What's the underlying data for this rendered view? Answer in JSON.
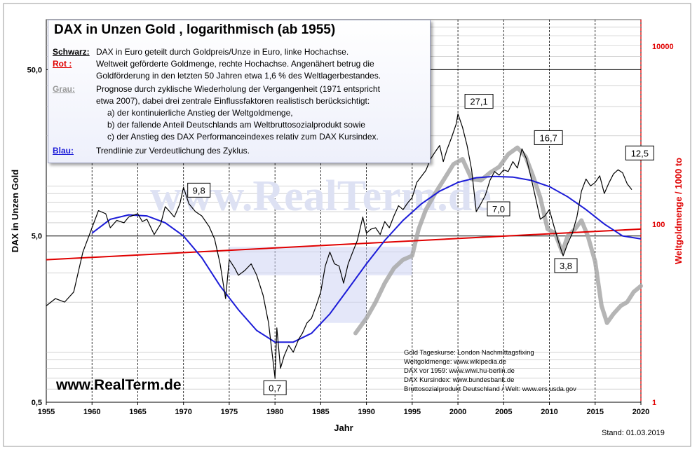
{
  "title": "DAX in Unzen Gold , logarithmisch  (ab 1955)",
  "legend": {
    "schwarz_label": "Schwarz:",
    "schwarz_text": "DAX in Euro geteilt durch Goldpreis/Unze in Euro, linke Hochachse.",
    "rot_label": "Rot :",
    "rot_text_1": "Weltweit geförderte Goldmenge, rechte Hochachse. Angenähert betrug die",
    "rot_text_2": "Goldförderung in den letzten 50 Jahren etwa  1,6 %  des Weltlagerbestandes.",
    "grau_label": "Grau:",
    "grau_text_1": "Prognose durch zyklische Wiederholung der Vergangenheit (1971 entspricht",
    "grau_text_2": "etwa 2007),   dabei drei zentrale Einflussfaktoren realistisch berücksichtigt:",
    "grau_a": "a) der kontinuierliche Anstieg der Weltgoldmenge,",
    "grau_b": "b) der fallende Anteil Deutschlands am Weltbruttosozialprodukt sowie",
    "grau_c": "c) der Anstieg des DAX Performanceindexes relativ zum DAX Kursindex.",
    "blau_label": "Blau:",
    "blau_text": "Trendlinie zur Verdeutlichung des Zyklus."
  },
  "sources": [
    "Gold Tageskurse: London Nachmittagsfixing",
    "Weltgoldmenge: www.wikipedia.de",
    "DAX vor 1959:  www.wiwi.hu-berlin.de",
    "DAX Kursindex: www.bundesbank.de",
    "Bruttosozialprodukt Deutschland / Welt: www.ers.usda.gov"
  ],
  "website": "www.RealTerm.de",
  "watermark": "www.RealTerm.de",
  "stand": "Stand:  01.03.2019",
  "colors": {
    "black": "#000000",
    "red": "#e00000",
    "grey": "#a8a8a8",
    "blue": "#1c1cd8",
    "box": "#cdd3f4"
  },
  "chart_data": {
    "type": "line",
    "xlabel": "Jahr",
    "ylabel": "DAX in Unzen Gold",
    "y2label": "Weltgoldmenge / 1000 to",
    "xlim": [
      1955,
      2020
    ],
    "ylim": [
      0.5,
      100
    ],
    "y2lim": [
      1,
      20000
    ],
    "yscale": "log",
    "y2scale": "log",
    "x_ticks": [
      "1955",
      "1960",
      "1965",
      "1970",
      "1975",
      "1980",
      "1985",
      "1990",
      "1995",
      "2000",
      "2005",
      "2010",
      "2015",
      "2020"
    ],
    "y_ticks": [
      {
        "value": 0.5,
        "label": "0,5"
      },
      {
        "value": 5,
        "label": "5,0"
      },
      {
        "value": 50,
        "label": "50,0"
      }
    ],
    "y2_ticks": [
      {
        "value": 1,
        "label": "1"
      },
      {
        "value": 100,
        "label": "100"
      },
      {
        "value": 10000,
        "label": "10000"
      }
    ],
    "annotations": [
      {
        "x": 1970,
        "y": 9.8,
        "label": "9,8"
      },
      {
        "x": 1980,
        "y": 0.7,
        "label": "0,7"
      },
      {
        "x": 2000,
        "y": 27.1,
        "label": "27,1"
      },
      {
        "x": 2002.6,
        "y": 7.0,
        "label": "7,0"
      },
      {
        "x": 2007.9,
        "y": 16.7,
        "label": "16,7"
      },
      {
        "x": 2011.8,
        "y": 3.8,
        "label": "3,8"
      },
      {
        "x": 2018.8,
        "y": 12.5,
        "label": "12,5"
      }
    ],
    "series": [
      {
        "name": "Schwarz",
        "color": "#000000",
        "x": [
          1955,
          1956,
          1957,
          1958,
          1959,
          1960,
          1960.7,
          1961.5,
          1962,
          1962.7,
          1963.5,
          1964,
          1965,
          1965.5,
          1966,
          1966.8,
          1967.5,
          1968,
          1968.5,
          1969,
          1969.6,
          1970,
          1970.6,
          1971.3,
          1972,
          1972.8,
          1973.4,
          1974,
          1974.6,
          1975,
          1975.6,
          1976,
          1976.7,
          1977.4,
          1978,
          1978.7,
          1979.3,
          1980,
          1980.2,
          1980.6,
          1981,
          1981.5,
          1982,
          1982.6,
          1983,
          1983.5,
          1984,
          1984.5,
          1985,
          1985.5,
          1986,
          1986.5,
          1987,
          1987.5,
          1988,
          1988.5,
          1989,
          1989.6,
          1990,
          1990.5,
          1991,
          1991.5,
          1992,
          1992.5,
          1993,
          1993.5,
          1994,
          1994.5,
          1995,
          1995.5,
          1996,
          1996.5,
          1997,
          1997.5,
          1998,
          1998.4,
          1998.8,
          1999.3,
          1999.8,
          2000,
          2000.5,
          2001,
          2001.5,
          2002,
          2002.5,
          2003,
          2003.5,
          2004,
          2004.5,
          2005,
          2005.5,
          2006,
          2006.5,
          2007,
          2007.5,
          2008,
          2008.5,
          2009,
          2009.5,
          2010,
          2010.5,
          2011,
          2011.5,
          2012,
          2012.5,
          2013,
          2013.5,
          2014,
          2014.5,
          2015,
          2015.5,
          2016,
          2016.5,
          2017,
          2017.5,
          2018,
          2018.5,
          2019
        ],
        "y": [
          1.9,
          2.1,
          2.0,
          2.3,
          4.0,
          5.6,
          7.1,
          6.8,
          5.6,
          6.2,
          6.0,
          6.5,
          6.8,
          6.1,
          6.3,
          5.1,
          5.9,
          7.5,
          7.0,
          6.5,
          7.8,
          9.8,
          7.8,
          7.0,
          6.6,
          5.7,
          4.8,
          3.4,
          2.1,
          3.6,
          3.2,
          2.9,
          3.1,
          3.4,
          2.9,
          2.2,
          1.5,
          0.7,
          1.4,
          0.8,
          0.95,
          1.1,
          1.0,
          1.2,
          1.3,
          1.5,
          1.6,
          1.9,
          2.3,
          3.3,
          4.0,
          3.4,
          3.3,
          2.6,
          3.4,
          4.0,
          4.7,
          6.5,
          5.2,
          5.5,
          5.6,
          5.1,
          6.1,
          5.6,
          6.6,
          7.6,
          7.2,
          7.9,
          8.5,
          10.5,
          11.4,
          12.4,
          14.5,
          16.0,
          17.5,
          14.0,
          16.5,
          19.5,
          23.5,
          27.1,
          22.5,
          17.5,
          12.5,
          7.0,
          7.8,
          8.8,
          10.8,
          12.2,
          11.6,
          12.5,
          12.2,
          14.0,
          12.8,
          16.7,
          14.5,
          11.2,
          8.4,
          6.3,
          6.6,
          7.2,
          5.7,
          4.6,
          3.8,
          4.5,
          5.2,
          6.5,
          9.3,
          11.0,
          10.0,
          10.5,
          11.5,
          9.0,
          10.4,
          11.8,
          12.5,
          12.0,
          10.3,
          9.5
        ]
      },
      {
        "name": "Grau",
        "color": "#a8a8a8",
        "x": [
          1988.8,
          1990,
          1991,
          1992,
          1993,
          1994,
          1995,
          1995.7,
          1996.5,
          1997.5,
          1998.5,
          1999.5,
          2000.5,
          2001.5,
          2002.5,
          2003.5,
          2004.5,
          2005.5,
          2006.5,
          2007.4,
          2008.2,
          2009,
          2009.8,
          2010.6,
          2011.4,
          2012,
          2012.8,
          2013.5,
          2014.2,
          2015,
          2015.7,
          2016.3,
          2017,
          2017.8,
          2018.5,
          2019.2,
          2020
        ],
        "y": [
          1.3,
          1.6,
          2.0,
          2.6,
          3.2,
          3.6,
          3.8,
          5.5,
          7.2,
          9.0,
          11.0,
          13.5,
          14.5,
          11.0,
          10.8,
          12.0,
          13.0,
          15.5,
          17.0,
          15.0,
          11.5,
          8.5,
          5.5,
          5.2,
          4.0,
          5.0,
          5.5,
          6.2,
          5.0,
          3.5,
          1.9,
          1.5,
          1.7,
          1.9,
          2.0,
          2.3,
          2.5
        ]
      },
      {
        "name": "Blau",
        "color": "#1c1cd8",
        "x": [
          1960,
          1962,
          1964,
          1966,
          1968,
          1970,
          1972,
          1974,
          1976,
          1978,
          1980,
          1982,
          1984,
          1986,
          1988,
          1990,
          1992,
          1994,
          1996,
          1998,
          2000,
          2002,
          2004,
          2006,
          2008,
          2010,
          2012,
          2014,
          2016,
          2018,
          2020
        ],
        "y": [
          5.2,
          6.3,
          6.7,
          6.6,
          6.0,
          5.0,
          3.7,
          2.5,
          1.8,
          1.35,
          1.15,
          1.15,
          1.3,
          1.7,
          2.4,
          3.4,
          4.7,
          6.2,
          7.8,
          9.3,
          10.5,
          11.2,
          11.4,
          11.3,
          10.8,
          9.9,
          8.6,
          7.2,
          5.9,
          5.0,
          4.8
        ]
      },
      {
        "name": "Rot",
        "color": "#e00000",
        "x": [
          1955,
          2020
        ],
        "y": [
          3.6,
          5.5
        ]
      }
    ]
  }
}
